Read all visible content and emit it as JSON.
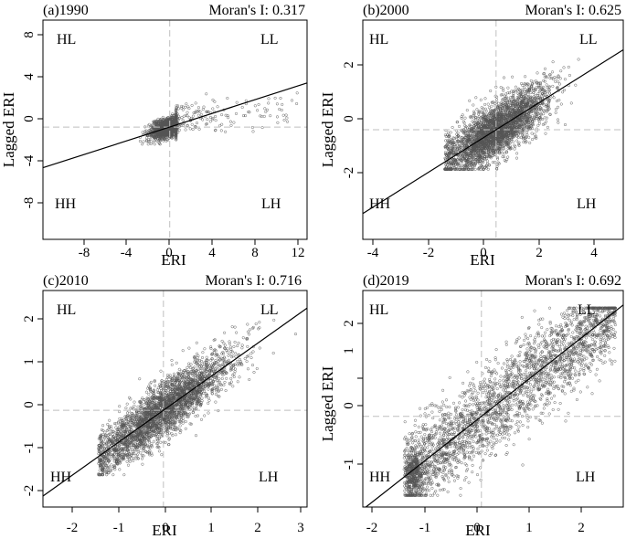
{
  "figure": {
    "panels": [
      {
        "label": "(a)1990",
        "moran_text": "Moran's I: 0.317",
        "xlabel": "ERI",
        "ylabel": "Lagged ERI",
        "xticks": [
          "-8",
          "-4",
          "0",
          "4",
          "8",
          "12"
        ],
        "yticks": [
          "8",
          "4",
          "0",
          "-4",
          "-8"
        ],
        "quadrants": {
          "top_left": "HL",
          "top_right": "LL",
          "bottom_left": "HH",
          "bottom_right": "LH"
        }
      },
      {
        "label": "(b)2000",
        "moran_text": "Moran's I: 0.625",
        "xlabel": "ERI",
        "ylabel": "Lagged ERI",
        "xticks": [
          "-4",
          "-2",
          "0",
          "2",
          "4"
        ],
        "yticks": [
          "2",
          "0",
          "-2"
        ],
        "quadrants": {
          "top_left": "HL",
          "top_right": "LL",
          "bottom_left": "HH",
          "bottom_right": "LH"
        }
      },
      {
        "label": "(c)2010",
        "moran_text": "Moran's I: 0.716",
        "xlabel": "ERI",
        "ylabel": "",
        "xticks": [
          "-2",
          "-1",
          "0",
          "1",
          "2",
          "3"
        ],
        "yticks": [
          "2",
          "1",
          "0",
          "-1",
          "-2"
        ],
        "quadrants": {
          "top_left": "HL",
          "top_right": "LL",
          "bottom_left": "HH",
          "bottom_right": "LH"
        }
      },
      {
        "label": "(d)2019",
        "moran_text": "Moran's I: 0.692",
        "xlabel": "ERI",
        "ylabel": "Lagged ERI",
        "xticks": [
          "-2",
          "-1",
          "0",
          "1",
          "2"
        ],
        "yticks": [
          "2",
          "1",
          "0",
          "-1"
        ],
        "quadrants": {
          "top_left": "HL",
          "top_right": "LL",
          "bottom_left": "HH",
          "bottom_right": "LH"
        }
      }
    ]
  },
  "chart_data": [
    {
      "type": "scatter",
      "title": "(a)1990",
      "annotation": "Moran's I: 0.317",
      "xlabel": "ERI",
      "ylabel": "Lagged ERI",
      "xlim": [
        -12,
        13
      ],
      "ylim": [
        -10.5,
        10
      ],
      "grid": false,
      "reference_lines": {
        "x": 0,
        "y": 0
      },
      "fit_line": {
        "slope": 0.317,
        "intercept": 0
      },
      "points": {
        "count": 1600,
        "core": {
          "x_range": [
            -2.8,
            0.6
          ],
          "y_range": [
            -1.6,
            2.2
          ]
        },
        "tail": {
          "x_range": [
            0.6,
            12.5
          ],
          "y_range": [
            -0.5,
            3.8
          ]
        }
      }
    },
    {
      "type": "scatter",
      "title": "(b)2000",
      "annotation": "Moran's I: 0.625",
      "xlabel": "ERI",
      "ylabel": "Lagged ERI",
      "xlim": [
        -4.4,
        4.2
      ],
      "ylim": [
        -3.6,
        3.6
      ],
      "grid": false,
      "reference_lines": {
        "x": 0,
        "y": 0
      },
      "fit_line": {
        "slope": 0.625,
        "intercept": 0
      },
      "points": {
        "count": 3000,
        "x_range": [
          -1.7,
          4.0
        ],
        "y_range": [
          -1.3,
          3.2
        ],
        "center": [
          0,
          0
        ]
      }
    },
    {
      "type": "scatter",
      "title": "(c)2010",
      "annotation": "Moran's I: 0.716",
      "xlabel": "ERI",
      "ylabel": "",
      "xlim": [
        -2.6,
        3.1
      ],
      "ylim": [
        -2.1,
        2.6
      ],
      "grid": false,
      "reference_lines": {
        "x": 0,
        "y": 0
      },
      "fit_line": {
        "slope": 0.716,
        "intercept": 0
      },
      "points": {
        "count": 3000,
        "x_range": [
          -1.4,
          3.0
        ],
        "y_range": [
          -1.4,
          2.2
        ],
        "center": [
          0,
          0
        ]
      }
    },
    {
      "type": "scatter",
      "title": "(d)2019",
      "annotation": "Moran's I: 0.692",
      "xlabel": "ERI",
      "ylabel": "Lagged ERI",
      "xlim": [
        -2.3,
        2.75
      ],
      "ylim": [
        -1.55,
        2.15
      ],
      "grid": false,
      "reference_lines": {
        "x": 0,
        "y": 0
      },
      "fit_line": {
        "slope": 0.692,
        "intercept": 0
      },
      "points": {
        "count": 3000,
        "x_range": [
          -1.5,
          2.6
        ],
        "y_range": [
          -1.35,
          1.85
        ],
        "cluster": {
          "x": -1.3,
          "y": -1.0
        }
      }
    }
  ]
}
